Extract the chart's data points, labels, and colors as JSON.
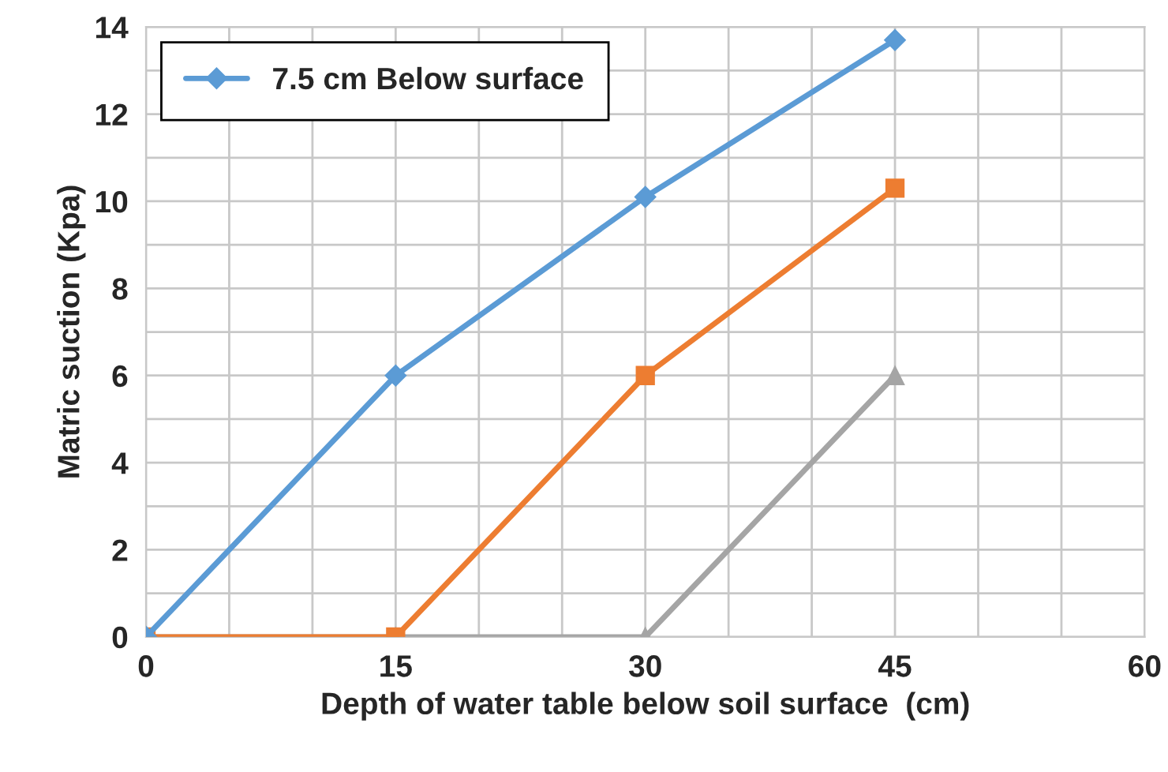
{
  "chart_data": {
    "type": "line",
    "xlabel": "Depth of water table below soil surface  (cm)",
    "ylabel": "Matric suction (Kpa)",
    "x": [
      0,
      15,
      30,
      45
    ],
    "series": [
      {
        "name": "7.5 cm Below surface",
        "color": "#5b9bd5",
        "values": [
          0,
          6,
          10.1,
          13.7
        ],
        "marker": "diamond"
      },
      {
        "color": "#ed7d31",
        "values": [
          0,
          0,
          6,
          10.3
        ],
        "marker": "square"
      },
      {
        "color": "#a5a5a5",
        "values": [
          0,
          0,
          0,
          6
        ],
        "marker": "triangle"
      }
    ],
    "xlim": [
      0,
      60
    ],
    "ylim": [
      0,
      14
    ],
    "xticks": [
      0,
      {
        "value": 5,
        "label": null
      },
      {
        "value": 10,
        "label": null
      },
      15,
      {
        "value": 20,
        "label": null
      },
      {
        "value": 25,
        "label": null
      },
      30,
      {
        "value": 35,
        "label": null
      },
      {
        "value": 40,
        "label": null
      },
      45,
      {
        "value": 50,
        "label": null
      },
      {
        "value": 55,
        "label": null
      },
      60
    ],
    "yticks": [
      0,
      {
        "value": 1,
        "label": null
      },
      2,
      {
        "value": 3,
        "label": null
      },
      4,
      {
        "value": 5,
        "label": null
      },
      6,
      {
        "value": 7,
        "label": null
      },
      8,
      {
        "value": 9,
        "label": null
      },
      10,
      {
        "value": 11,
        "label": null
      },
      12,
      {
        "value": 13,
        "label": null
      },
      14
    ],
    "grid": true,
    "legend": "top left",
    "line_style": "solid"
  }
}
